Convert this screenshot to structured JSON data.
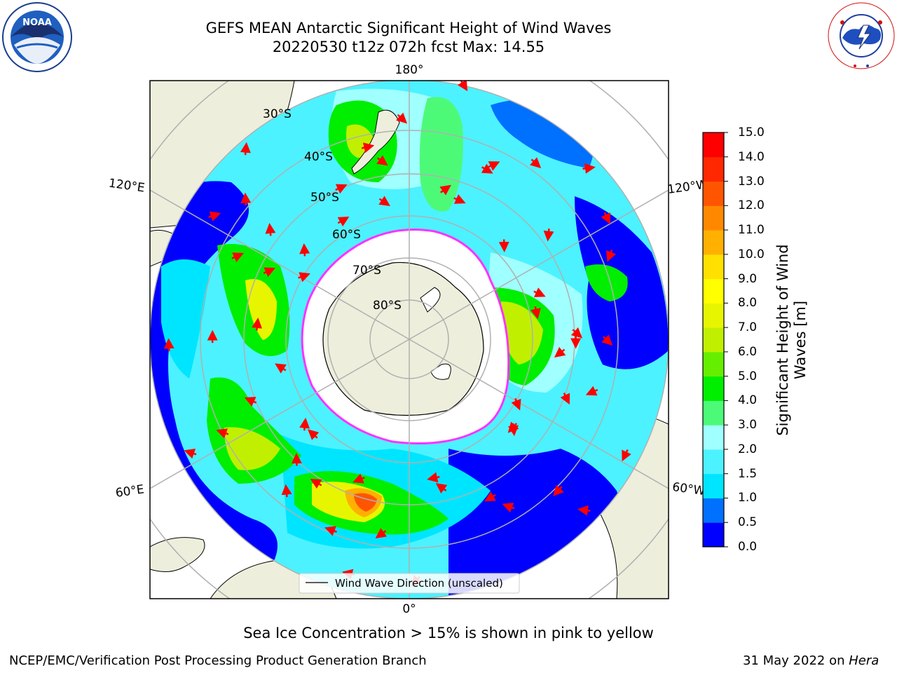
{
  "title": {
    "line1": "GEFS MEAN Antarctic Significant Height of Wind Waves",
    "line2": "20220530 t12z 072h fcst   Max: 14.55"
  },
  "map": {
    "projection": "south-polar-stereographic",
    "longitude_labels": [
      "180°",
      "120°E",
      "120°W",
      "60°E",
      "60°W",
      "0°"
    ],
    "latitude_labels": [
      "30°S",
      "40°S",
      "50°S",
      "60°S",
      "70°S",
      "80°S"
    ],
    "legend_label": "Wind Wave Direction (unscaled)",
    "arrow_color": "#ff0000",
    "land_color": "#eeeedc",
    "ice_edge_colors": [
      "#ff33ff",
      "#ffcc00"
    ]
  },
  "colorbar": {
    "title": "Significant Height of Wind Waves [m]",
    "ticks": [
      "0.0",
      "0.5",
      "1.0",
      "1.5",
      "2.0",
      "3.0",
      "4.0",
      "5.0",
      "6.0",
      "7.0",
      "8.0",
      "9.0",
      "10.0",
      "11.0",
      "12.0",
      "13.0",
      "14.0",
      "15.0"
    ],
    "colors": [
      "#0000ff",
      "#0070ff",
      "#00e5ff",
      "#4cf2ff",
      "#a0ffff",
      "#4dfa78",
      "#00ee00",
      "#66ee00",
      "#c0f000",
      "#e8f500",
      "#ffff00",
      "#ffe000",
      "#ffb000",
      "#ff8800",
      "#ff5500",
      "#ff2800",
      "#ff0000"
    ]
  },
  "caption": "Sea Ice Concentration > 15% is shown in pink to yellow",
  "footer": {
    "left": "NCEP/EMC/Verification Post Processing Product Generation Branch",
    "date": "31 May 2022 on ",
    "machine": "Hera"
  },
  "logos": {
    "noaa_text": "NOAA",
    "nws_text": "NATIONAL WEATHER SERVICE"
  }
}
